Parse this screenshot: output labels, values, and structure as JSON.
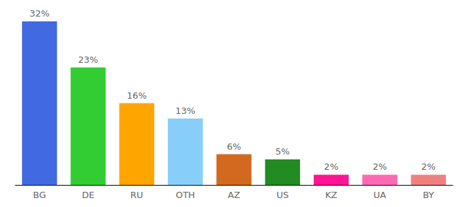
{
  "chart_data": {
    "type": "bar",
    "categories": [
      "BG",
      "DE",
      "RU",
      "OTH",
      "AZ",
      "US",
      "KZ",
      "UA",
      "BY"
    ],
    "values": [
      32,
      23,
      16,
      13,
      6,
      5,
      2,
      2,
      2
    ],
    "value_labels": [
      "32%",
      "23%",
      "16%",
      "13%",
      "6%",
      "5%",
      "2%",
      "2%",
      "2%"
    ],
    "colors": [
      "#4169e1",
      "#32cd32",
      "#ffa500",
      "#87cefa",
      "#d2691e",
      "#228b22",
      "#ff1493",
      "#ff69b4",
      "#f08080"
    ],
    "ylim": [
      0,
      32
    ],
    "grid": false,
    "data_labels": true,
    "tick_labels": "x"
  }
}
